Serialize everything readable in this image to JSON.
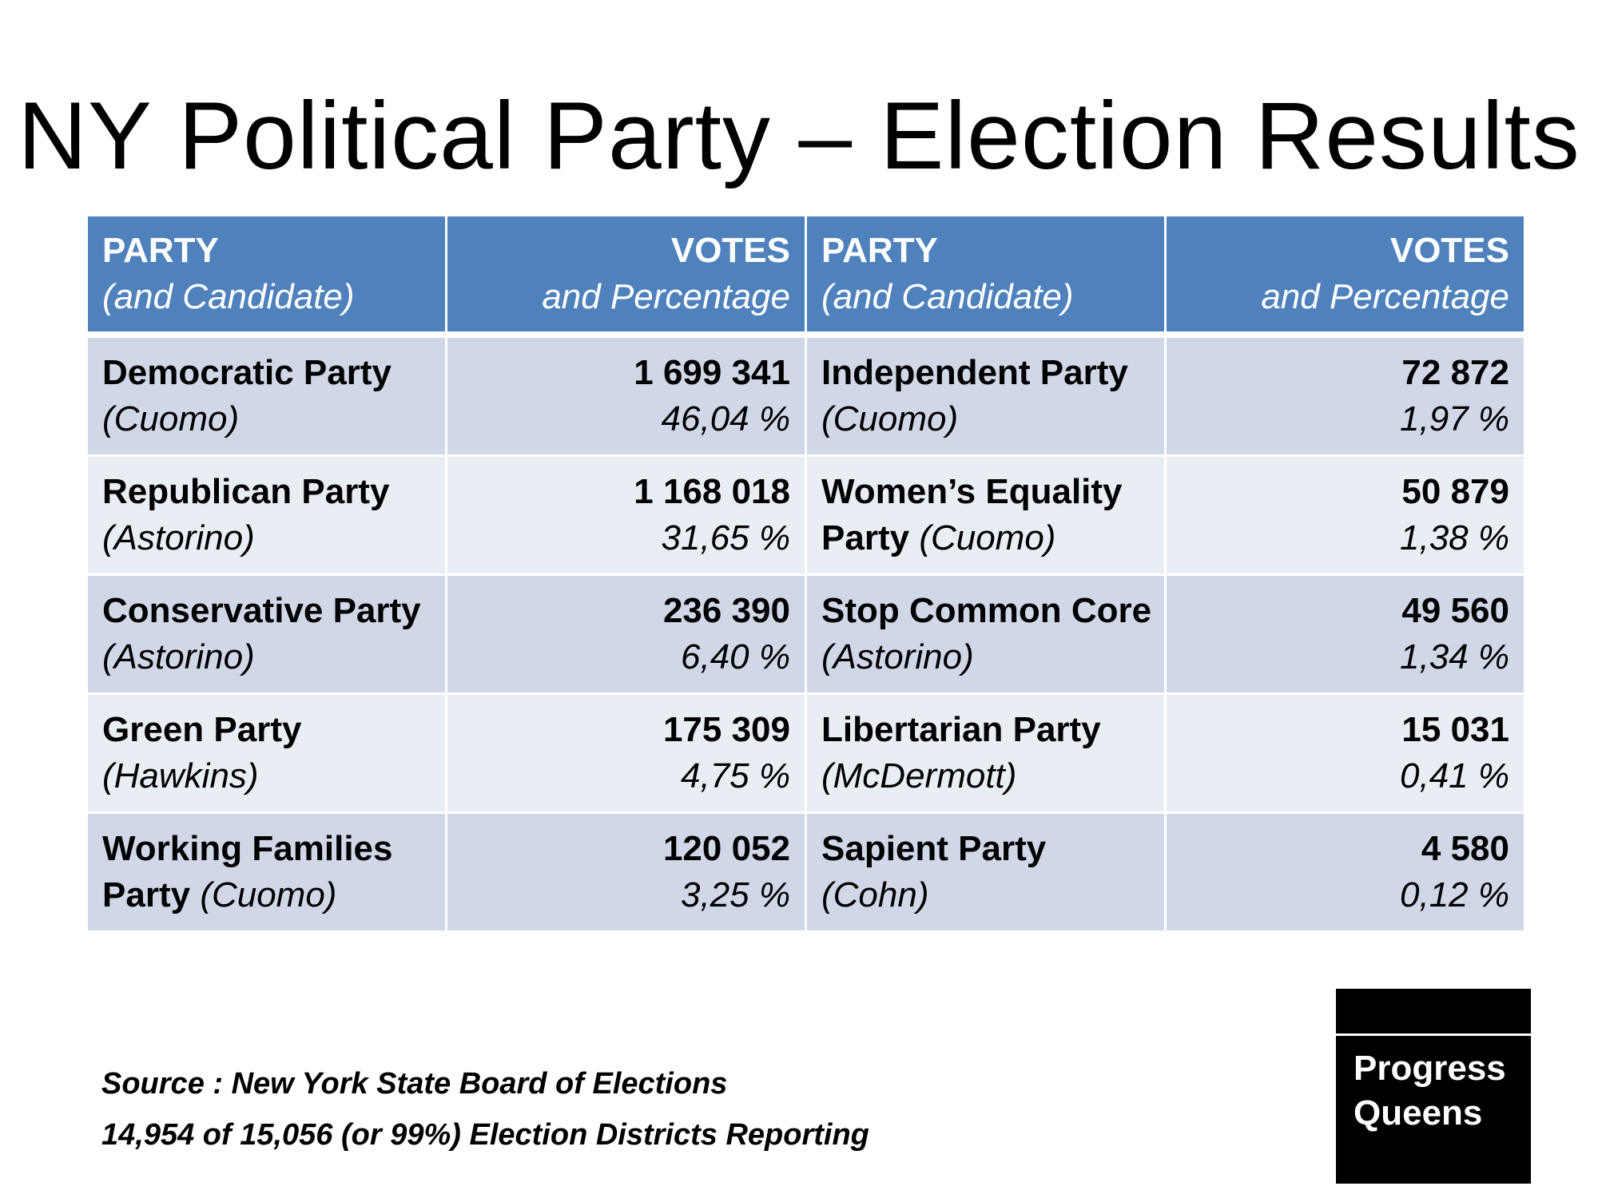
{
  "title": "NY Political Party – Election Results",
  "table": {
    "header": {
      "party_label": "PARTY",
      "party_sub": "(and Candidate)",
      "votes_label": "VOTES",
      "votes_sub": "and Percentage"
    },
    "rows": [
      {
        "left": {
          "party": "Democratic Party",
          "candidate": "(Cuomo)",
          "votes": "1 699 341",
          "pct": "46,04 %"
        },
        "right": {
          "party": "Independent Party",
          "candidate": "(Cuomo)",
          "votes": "72 872",
          "pct": "1,97 %"
        }
      },
      {
        "left": {
          "party": "Republican Party",
          "candidate": "(Astorino)",
          "votes": "1 168 018",
          "pct": "31,65 %"
        },
        "right": {
          "party_line1": "Women’s Equality",
          "party_line2": "Party",
          "candidate": "(Cuomo)",
          "votes": "50 879",
          "pct": "1,38 %"
        }
      },
      {
        "left": {
          "party": "Conservative Party",
          "candidate": "(Astorino)",
          "votes": "236 390",
          "pct": "6,40 %"
        },
        "right": {
          "party": "Stop Common Core",
          "candidate": "(Astorino)",
          "votes": "49 560",
          "pct": "1,34 %"
        }
      },
      {
        "left": {
          "party": "Green Party",
          "candidate": "(Hawkins)",
          "votes": "175 309",
          "pct": "4,75 %"
        },
        "right": {
          "party": "Libertarian Party",
          "candidate": "(McDermott)",
          "votes": "15 031",
          "pct": "0,41 %"
        }
      },
      {
        "left": {
          "party_line1": "Working Families",
          "party_line2": "Party",
          "candidate": "(Cuomo)",
          "votes": "120 052",
          "pct": "3,25 %"
        },
        "right": {
          "party": "Sapient Party",
          "candidate": "(Cohn)",
          "votes": "4 580",
          "pct": "0,12 %"
        }
      }
    ]
  },
  "source": {
    "line1": "Source : New York State Board of Elections",
    "line2": "14,954 of 15,056 (or 99%) Election Districts Reporting"
  },
  "logo": {
    "line1": "Progress",
    "line2": "Queens"
  }
}
